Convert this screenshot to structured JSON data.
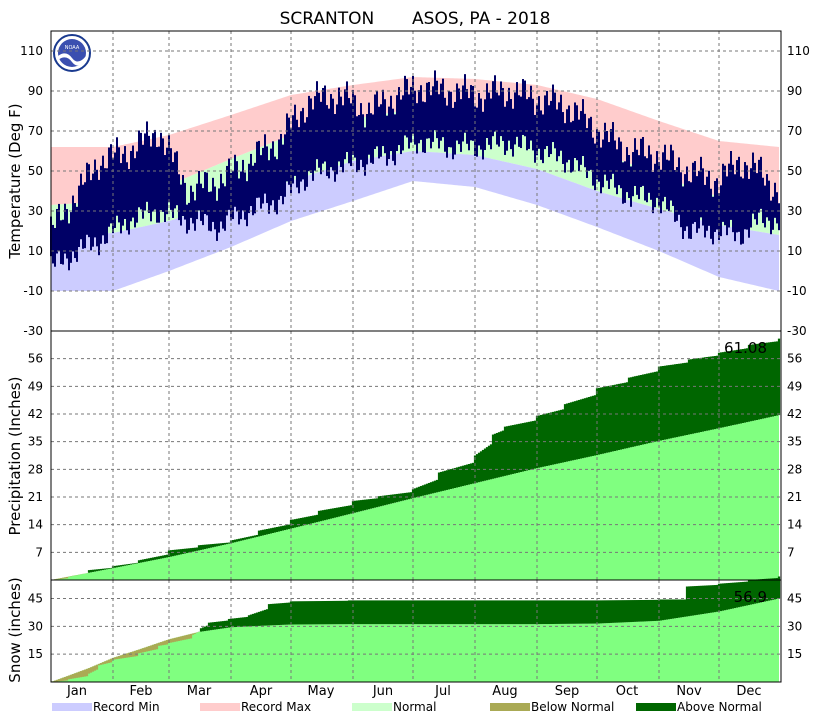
{
  "title": "SCRANTON       ASOS, PA - 2018",
  "months": [
    "Jan",
    "Feb",
    "Mar",
    "Apr",
    "May",
    "Jun",
    "Jul",
    "Aug",
    "Sep",
    "Oct",
    "Nov",
    "Dec"
  ],
  "colors": {
    "record_min": "#ccccff",
    "record_max": "#ffcccc",
    "normal_temp": "#ccffcc",
    "observed_temp": "#000066",
    "normal_precip": "#80ff80",
    "above_normal": "#006600",
    "below_normal": "#aaaa55"
  },
  "legend": [
    {
      "label": "Record Min",
      "color": "#ccccff"
    },
    {
      "label": "Record Max",
      "color": "#ffcccc"
    },
    {
      "label": "Normal",
      "color": "#ccffcc"
    },
    {
      "label": "Below Normal",
      "color": "#aaaa55"
    },
    {
      "label": "Above Normal",
      "color": "#006600"
    }
  ],
  "chart_data": [
    {
      "type": "area",
      "name": "temperature",
      "ylabel": "Temperature (Deg F)",
      "ylim": [
        -30,
        120
      ],
      "yticks": [
        110,
        90,
        70,
        50,
        30,
        10,
        -10,
        -30
      ],
      "grid": true,
      "x_unit": "day_of_year",
      "series": [
        {
          "name": "Record Max",
          "x": [
            1,
            32,
            60,
            91,
            121,
            152,
            182,
            213,
            244,
            274,
            305,
            335,
            365
          ],
          "values": [
            62,
            62,
            68,
            78,
            88,
            93,
            97,
            96,
            93,
            86,
            75,
            65,
            62
          ]
        },
        {
          "name": "Record Min",
          "x": [
            1,
            32,
            60,
            91,
            121,
            152,
            182,
            213,
            244,
            274,
            305,
            335,
            365
          ],
          "values": [
            -10,
            -10,
            0,
            12,
            25,
            35,
            45,
            42,
            33,
            22,
            10,
            -3,
            -10
          ]
        },
        {
          "name": "Normal High",
          "x": [
            1,
            32,
            60,
            91,
            121,
            152,
            182,
            213,
            244,
            274,
            305,
            335,
            365
          ],
          "values": [
            33,
            35,
            43,
            56,
            68,
            76,
            81,
            79,
            71,
            60,
            48,
            37,
            33
          ]
        },
        {
          "name": "Normal Low",
          "x": [
            1,
            32,
            60,
            91,
            121,
            152,
            182,
            213,
            244,
            274,
            305,
            335,
            365
          ],
          "values": [
            18,
            19,
            25,
            35,
            45,
            55,
            60,
            58,
            51,
            40,
            31,
            23,
            18
          ]
        },
        {
          "name": "Observed High",
          "x": [
            1,
            15,
            25,
            40,
            55,
            70,
            85,
            100,
            115,
            130,
            145,
            160,
            175,
            185,
            200,
            215,
            230,
            245,
            260,
            275,
            290,
            305,
            320,
            335,
            345,
            355,
            365
          ],
          "values": [
            20,
            40,
            55,
            60,
            70,
            40,
            45,
            55,
            65,
            85,
            88,
            80,
            88,
            92,
            90,
            88,
            90,
            86,
            82,
            70,
            60,
            58,
            50,
            45,
            55,
            50,
            40
          ]
        },
        {
          "name": "Observed Low",
          "x": [
            1,
            15,
            25,
            40,
            55,
            70,
            85,
            100,
            115,
            130,
            145,
            160,
            175,
            185,
            200,
            215,
            230,
            245,
            260,
            275,
            290,
            305,
            320,
            335,
            345,
            355,
            365
          ],
          "values": [
            2,
            10,
            15,
            25,
            30,
            25,
            22,
            30,
            35,
            48,
            52,
            55,
            60,
            65,
            62,
            62,
            64,
            60,
            55,
            45,
            38,
            35,
            20,
            20,
            18,
            25,
            25
          ]
        }
      ]
    },
    {
      "type": "area",
      "name": "precipitation",
      "ylabel": "Precipitation (Inches)",
      "ylim": [
        0,
        63
      ],
      "yticks": [
        56,
        49,
        42,
        35,
        28,
        21,
        14,
        7
      ],
      "grid": true,
      "annotation": "61.08",
      "x_unit": "day_of_year",
      "series": [
        {
          "name": "Normal",
          "x": [
            1,
            32,
            60,
            91,
            121,
            152,
            182,
            213,
            244,
            274,
            305,
            335,
            365
          ],
          "values": [
            0,
            3.0,
            5.8,
            9.3,
            13.0,
            16.9,
            20.7,
            24.5,
            28.3,
            31.6,
            35.2,
            38.4,
            41.7
          ]
        },
        {
          "name": "Observed",
          "x": [
            1,
            10,
            20,
            32,
            45,
            60,
            75,
            91,
            105,
            121,
            135,
            152,
            165,
            182,
            195,
            213,
            222,
            228,
            244,
            258,
            274,
            290,
            305,
            320,
            335,
            350,
            365
          ],
          "values": [
            0,
            0.8,
            2.5,
            3.5,
            5.0,
            7.5,
            8.8,
            10.0,
            12.5,
            15.2,
            17.5,
            20.0,
            21.2,
            23.0,
            27.2,
            31.5,
            36.8,
            38.8,
            41.5,
            44.5,
            48.5,
            51.2,
            54.0,
            55.8,
            57.5,
            59.5,
            61.08
          ]
        }
      ]
    },
    {
      "type": "area",
      "name": "snow",
      "ylabel": "Snow (inches)",
      "ylim": [
        0,
        55
      ],
      "yticks": [
        45,
        30,
        15
      ],
      "grid": true,
      "annotation": "56.9",
      "x_unit": "day_of_year",
      "series": [
        {
          "name": "Normal",
          "x": [
            1,
            10,
            20,
            32,
            45,
            60,
            75,
            91,
            110,
            121,
            150,
            244,
            274,
            305,
            320,
            335,
            350,
            365
          ],
          "values": [
            0,
            3.5,
            7.5,
            13.0,
            17.5,
            23.0,
            27.0,
            29.5,
            30.5,
            31.0,
            31.2,
            31.2,
            31.5,
            33.0,
            35.5,
            38.0,
            41.5,
            45.0
          ]
        },
        {
          "name": "Observed",
          "x": [
            1,
            10,
            20,
            25,
            32,
            45,
            55,
            60,
            72,
            76,
            80,
            90,
            100,
            110,
            121,
            150,
            244,
            274,
            305,
            318,
            319,
            335,
            350,
            365
          ],
          "values": [
            0,
            1.5,
            4.5,
            9.0,
            12.0,
            15.5,
            19.5,
            21.0,
            25.5,
            29.0,
            32.0,
            34.0,
            36.0,
            42.0,
            43.5,
            44.0,
            44.0,
            44.0,
            44.5,
            44.5,
            51.5,
            53.0,
            55.0,
            56.9
          ]
        }
      ]
    }
  ]
}
